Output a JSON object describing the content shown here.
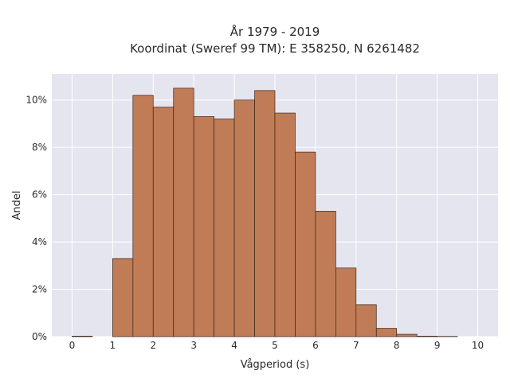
{
  "chart_data": {
    "type": "bar",
    "title_line1": "År 1979 - 2019",
    "title_line2": "Koordinat (Sweref 99 TM): E 358250, N 6261482",
    "xlabel": "Vågperiod (s)",
    "ylabel": "Andel",
    "xlim": [
      -0.5,
      10.5
    ],
    "ylim": [
      0,
      11.1
    ],
    "xticks": [
      0,
      1,
      2,
      3,
      4,
      5,
      6,
      7,
      8,
      9,
      10
    ],
    "yticks": [
      0,
      2,
      4,
      6,
      8,
      10
    ],
    "ytick_suffix": "%",
    "bin_width": 0.5,
    "bin_starts": [
      0,
      0.5,
      1,
      1.5,
      2,
      2.5,
      3,
      3.5,
      4,
      4.5,
      5,
      5.5,
      6,
      6.5,
      7,
      7.5,
      8,
      8.5,
      9,
      9.5
    ],
    "values": [
      0.02,
      0,
      3.3,
      10.2,
      9.7,
      10.5,
      9.3,
      9.2,
      10.0,
      10.4,
      9.45,
      7.8,
      5.3,
      2.9,
      1.35,
      0.35,
      0.1,
      0.02,
      0.01,
      0
    ],
    "bar_color": "#c07c56",
    "edge_color": "#3b2418",
    "plot_background": "#e5e5f0",
    "grid": true
  }
}
